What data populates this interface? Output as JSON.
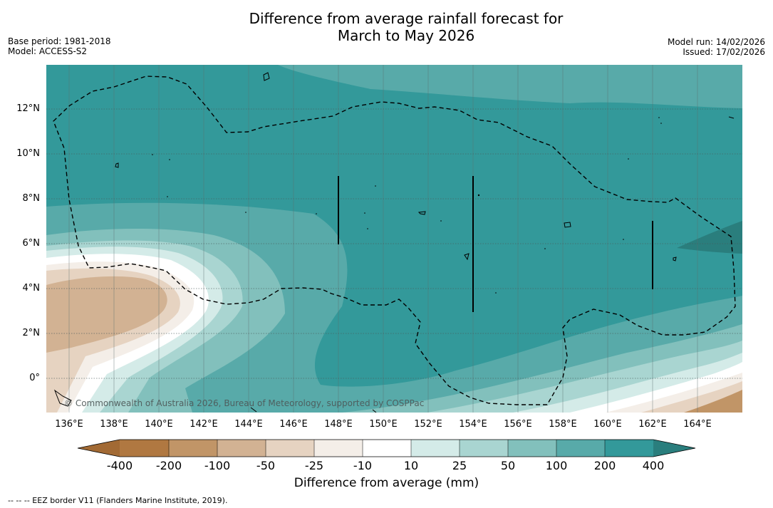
{
  "title_line1": "Difference from average rainfall forecast for",
  "title_line2": "March to May 2026",
  "base_period": "Base period: 1981-2018",
  "model": "Model: ACCESS-S2",
  "model_run": "Model run: 14/02/2026",
  "issued": "Issued: 17/02/2026",
  "copyright": "© Commonwealth of Australia 2026, Bureau of Meteorology, supported by COSPPac",
  "lon_ticks": [
    "136°E",
    "138°E",
    "140°E",
    "142°E",
    "144°E",
    "146°E",
    "148°E",
    "150°E",
    "152°E",
    "154°E",
    "156°E",
    "158°E",
    "160°E",
    "162°E",
    "164°E"
  ],
  "lat_ticks": [
    "12°N",
    "10°N",
    "8°N",
    "6°N",
    "4°N",
    "2°N",
    "0°"
  ],
  "colorbar": {
    "labels": [
      "-400",
      "-200",
      "-100",
      "-50",
      "-25",
      "-10",
      "10",
      "25",
      "50",
      "100",
      "200",
      "400"
    ],
    "colors": [
      "#a26a34",
      "#b07841",
      "#c19567",
      "#d2b293",
      "#e6d3c1",
      "#f4eee8",
      "#ffffff",
      "#d4ebe8",
      "#a9d5d1",
      "#82c0bc",
      "#58aaa9",
      "#33999a",
      "#2a7e7d"
    ],
    "title": "Difference from average (mm)"
  },
  "legend_footnote": "--  --  -- EEZ border V11 (Flanders Marine Institute, 2019).",
  "map": {
    "lon_range": [
      135,
      166
    ],
    "lat_range": [
      -1.5,
      14
    ],
    "ocean_base_color": "#33999a"
  }
}
